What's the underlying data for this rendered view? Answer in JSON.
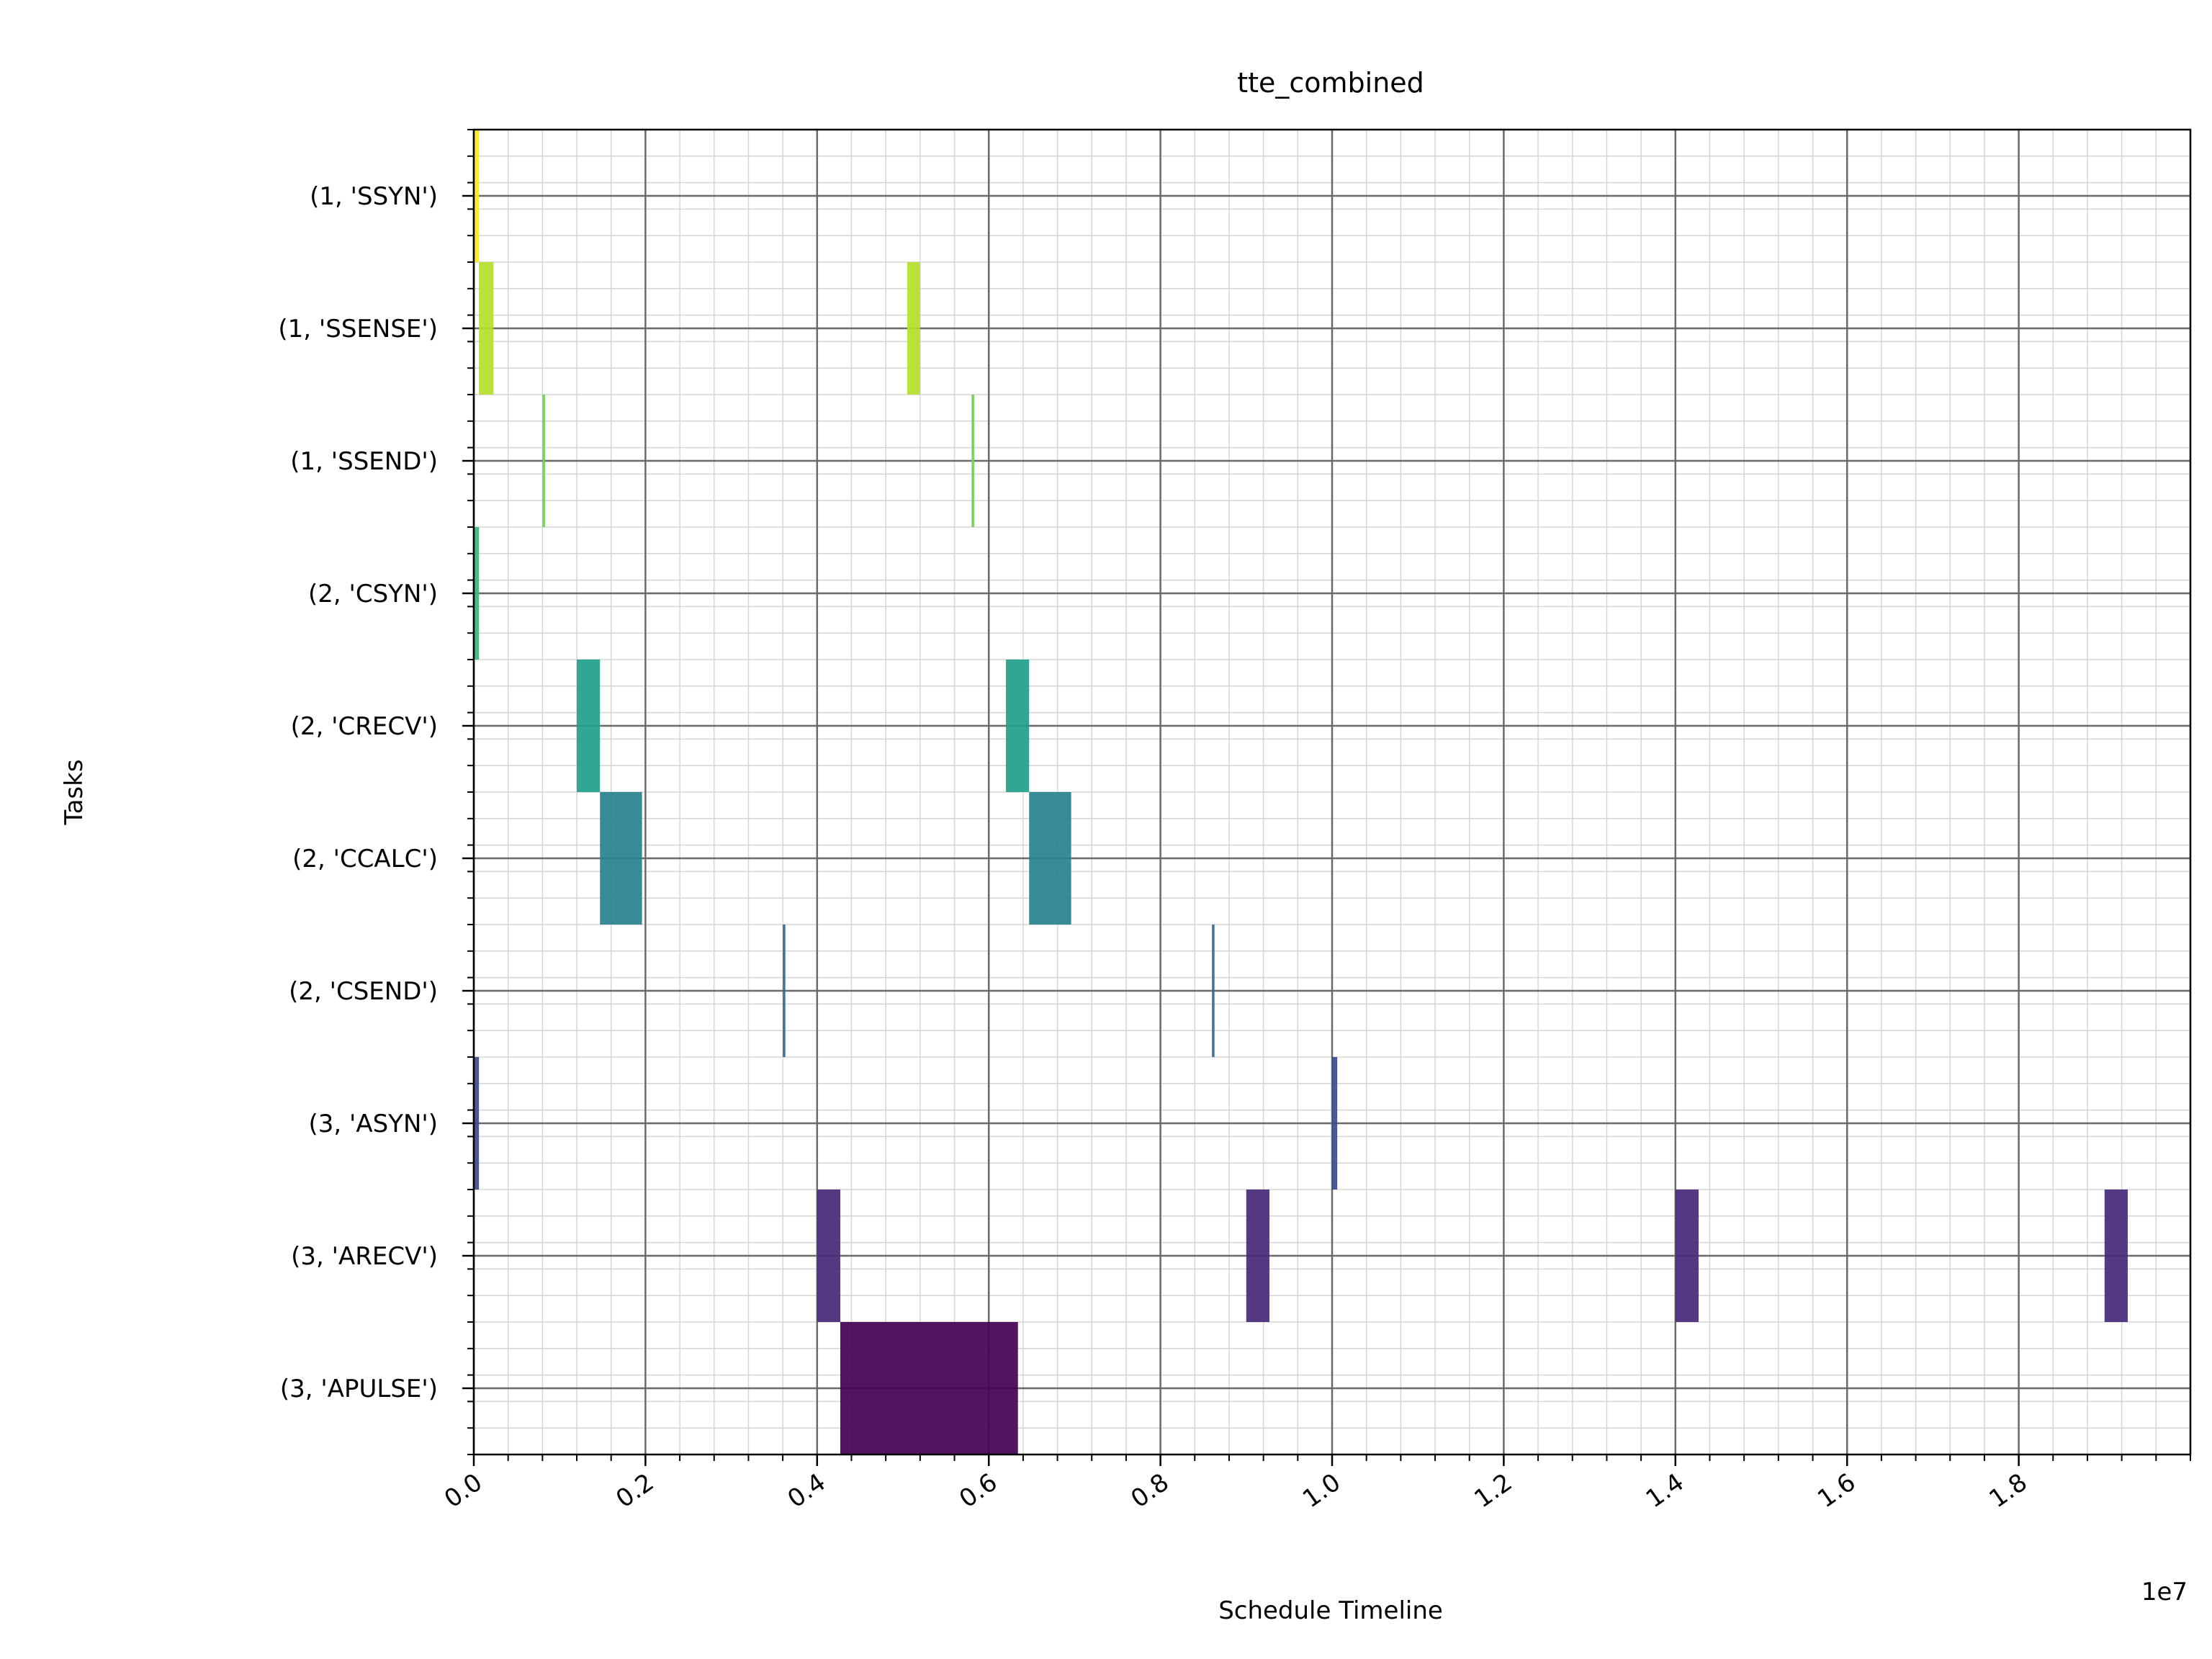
{
  "chart_data": {
    "type": "gantt",
    "title": "tte_combined",
    "xlabel": "Schedule Timeline",
    "ylabel": "Tasks",
    "x_offset_label": "1e7",
    "xlim": [
      0,
      20000000
    ],
    "x_ticks": [
      0,
      2000000,
      4000000,
      6000000,
      8000000,
      10000000,
      12000000,
      14000000,
      16000000,
      18000000
    ],
    "x_tick_labels": [
      "0.0",
      "0.2",
      "0.4",
      "0.6",
      "0.8",
      "1.0",
      "1.2",
      "1.4",
      "1.6",
      "1.8"
    ],
    "grid": "major and minor",
    "tasks": [
      {
        "label": "(1, 'SSYN')",
        "color": "#fde725",
        "intervals": [
          [
            0,
            60000
          ]
        ]
      },
      {
        "label": "(1, 'SSENSE')",
        "color": "#b5de2b",
        "intervals": [
          [
            60000,
            230000
          ],
          [
            5050000,
            5200000
          ]
        ]
      },
      {
        "label": "(1, 'SSEND')",
        "color": "#6ece58",
        "intervals": [
          [
            800000,
            830000
          ],
          [
            5800000,
            5830000
          ]
        ]
      },
      {
        "label": "(2, 'CSYN')",
        "color": "#35b779",
        "intervals": [
          [
            0,
            60000
          ]
        ]
      },
      {
        "label": "(2, 'CRECV')",
        "color": "#1f9e89",
        "intervals": [
          [
            1200000,
            1470000
          ],
          [
            6200000,
            6470000
          ]
        ]
      },
      {
        "label": "(2, 'CCALC')",
        "color": "#26828e",
        "intervals": [
          [
            1470000,
            1960000
          ],
          [
            6470000,
            6960000
          ]
        ]
      },
      {
        "label": "(2, 'CSEND')",
        "color": "#31688e",
        "intervals": [
          [
            3600000,
            3630000
          ],
          [
            8600000,
            8630000
          ]
        ]
      },
      {
        "label": "(3, 'ASYN')",
        "color": "#3e4989",
        "intervals": [
          [
            0,
            60000
          ],
          [
            10000000,
            10060000
          ]
        ]
      },
      {
        "label": "(3, 'ARECV')",
        "color": "#482878",
        "intervals": [
          [
            4000000,
            4270000
          ],
          [
            9000000,
            9270000
          ],
          [
            14000000,
            14270000
          ],
          [
            19000000,
            19270000
          ]
        ]
      },
      {
        "label": "(3, 'APULSE')",
        "color": "#440154",
        "intervals": [
          [
            4270000,
            6340000
          ]
        ]
      }
    ]
  }
}
